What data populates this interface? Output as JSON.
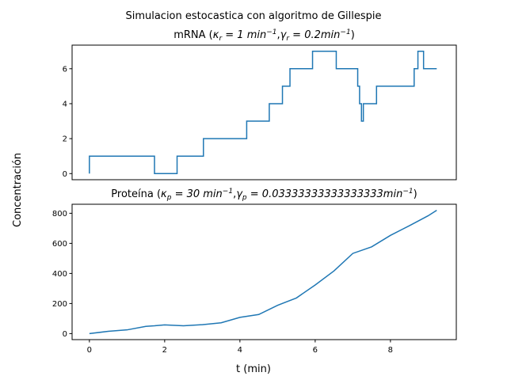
{
  "figure": {
    "suptitle": "Simulacion estocastica con algoritmo de Gillespie",
    "ylabel": "Concentración",
    "xlabel": "t (min)"
  },
  "chart_data": [
    {
      "type": "line",
      "step": true,
      "title_plain": "mRNA (",
      "title_math": [
        {
          "sym": "κ",
          "sub": "r",
          "rest": " = 1 min",
          "sup": "−1",
          "after": ","
        },
        {
          "sym": "γ",
          "sub": "r",
          "rest": " = 0.2min",
          "sup": "−1",
          "after": ")"
        }
      ],
      "xlim": [
        -0.46,
        9.75
      ],
      "ylim": [
        -0.35,
        7.35
      ],
      "yticks": [
        0,
        2,
        4,
        6
      ],
      "xticks": [],
      "color": "#1f77b4",
      "x": [
        0.0,
        0.0,
        1.73,
        2.33,
        3.03,
        4.18,
        4.78,
        5.13,
        5.33,
        5.93,
        6.56,
        7.13,
        7.18,
        7.23,
        7.28,
        7.63,
        8.63,
        8.73,
        8.88,
        9.23
      ],
      "y": [
        0,
        1,
        0,
        1,
        2,
        3,
        4,
        5,
        6,
        7,
        6,
        5,
        4,
        3,
        4,
        5,
        6,
        7,
        6,
        6
      ]
    },
    {
      "type": "line",
      "title_plain": "Proteína (",
      "title_math": [
        {
          "sym": "κ",
          "sub": "p",
          "rest": " = 30 min",
          "sup": "−1",
          "after": ","
        },
        {
          "sym": "γ",
          "sub": "p",
          "rest": " = 0.03333333333333333min",
          "sup": "−1",
          "after": ")"
        }
      ],
      "xlim": [
        -0.46,
        9.75
      ],
      "ylim": [
        -40,
        860
      ],
      "yticks": [
        0,
        200,
        400,
        600,
        800
      ],
      "xticks": [
        0,
        2,
        4,
        6,
        8
      ],
      "color": "#1f77b4",
      "x": [
        0,
        0.5,
        1.0,
        1.5,
        1.73,
        2.0,
        2.5,
        3.0,
        3.5,
        4.0,
        4.5,
        5.0,
        5.5,
        6.0,
        6.5,
        7.0,
        7.5,
        8.0,
        8.5,
        9.0,
        9.23
      ],
      "y": [
        0,
        12,
        28,
        45,
        55,
        55,
        55,
        56,
        75,
        105,
        130,
        185,
        240,
        320,
        420,
        530,
        580,
        650,
        720,
        780,
        820
      ]
    }
  ]
}
